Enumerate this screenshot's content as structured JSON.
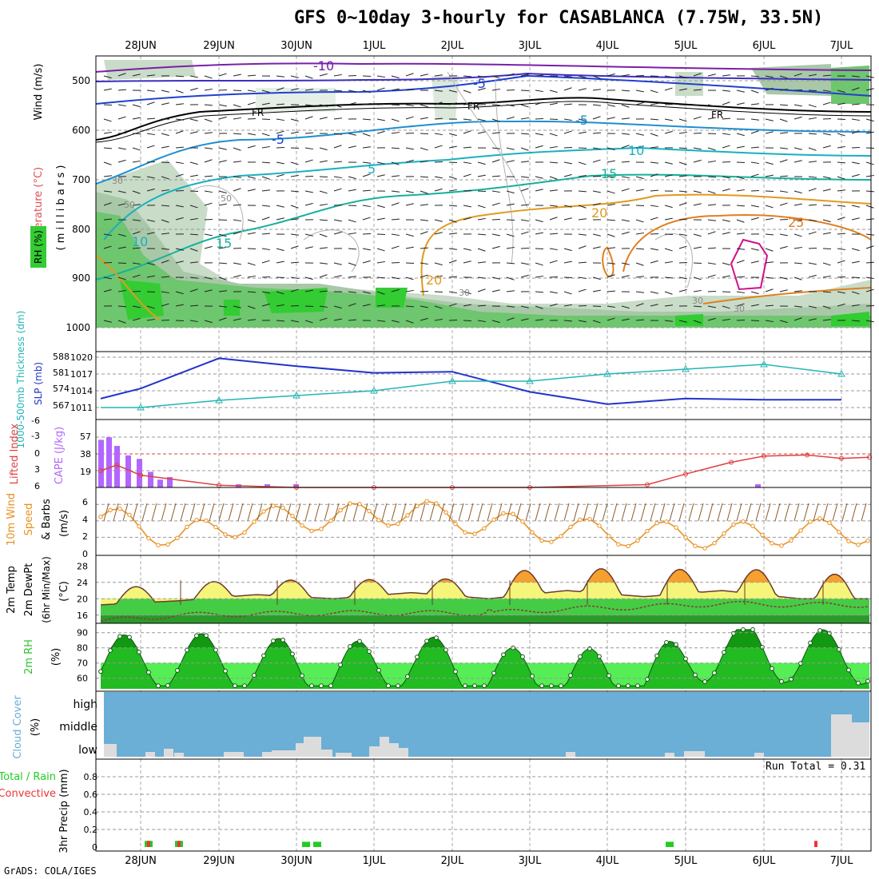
{
  "title": "GFS 0~10day 3-hourly for CASABLANCA (7.75W, 33.5N)",
  "credit": "GrADS: COLA/IGES",
  "x_axis_labels": [
    "28JUN",
    "29JUN",
    "30JUN",
    "1JUL",
    "2JUL",
    "3JUL",
    "4JUL",
    "5JUL",
    "6JUL",
    "7JUL"
  ],
  "colors": {
    "rh": "#33c233",
    "cloud": "#6baed6",
    "cape": "#b266ff",
    "lifted": "#e04040",
    "wind": "#e8901e",
    "temp_warm": "#f5f57a",
    "temp_hot": "#f5a030",
    "slp": "#2233cc",
    "thick": "#22b5b5",
    "precip_rain": "#22cc22",
    "precip_conv": "#ee3333"
  },
  "panels": {
    "upper_air": {
      "ylabels": [
        "Temperature (°C)",
        "Wind (m/s)",
        "( m i l l i b a r s )",
        "RH (%)"
      ],
      "yticks": [
        "500",
        "600",
        "700",
        "800",
        "900",
        "1000"
      ],
      "contour_labels": [
        "-10",
        "-5",
        "FR",
        "-5",
        "-5",
        "5",
        "10",
        "15",
        "10",
        "15",
        "20",
        "25",
        "20",
        "30",
        "30",
        "50",
        "50",
        "30",
        "30",
        "FR",
        "FR"
      ]
    },
    "slp": {
      "ylabel_left": "1000-500mb Thickness (dm)",
      "ylabel_right": "SLP (mb)",
      "yticks_left": [
        "588",
        "581",
        "574",
        "567"
      ],
      "yticks_right": [
        "1020",
        "1017",
        "1014",
        "1011"
      ]
    },
    "cape": {
      "ylabel_left": "Lifted Index",
      "ylabel_right": "CAPE (J/kg)",
      "yticks_left": [
        "-6",
        "-3",
        "0",
        "3",
        "6"
      ],
      "yticks_right": [
        "57",
        "38",
        "19"
      ]
    },
    "wind10m": {
      "ylabel_left": "10m Wind",
      "ylabel_mid": "Speed",
      "ylabel_right": "& Barbs",
      "ylabel_units": "(m/s)",
      "yticks": [
        "6",
        "4",
        "2",
        "0"
      ]
    },
    "temp2m": {
      "ylabel_1": "2m Temp",
      "ylabel_2": "2m DewPt",
      "ylabel_3": "(6hr Min/Max)",
      "ylabel_units": "(°C)",
      "yticks": [
        "28",
        "24",
        "20",
        "16"
      ]
    },
    "rh2m": {
      "ylabel": "2m RH",
      "ylabel_units": "(%)",
      "yticks": [
        "90",
        "80",
        "70",
        "60"
      ]
    },
    "cloud": {
      "ylabel": "Cloud Cover",
      "ylabel_units": "(%)",
      "levels": [
        "high",
        "middle",
        "low"
      ]
    },
    "precip": {
      "ylabel_left": "Total / Rain",
      "ylabel_conv": "Convective",
      "ylabel_right": "3hr Precip (mm)",
      "yticks": [
        "0.8",
        "0.6",
        "0.4",
        "0.2",
        "0"
      ],
      "run_total": "Run Total = 0.31"
    }
  },
  "chart_data": [
    {
      "type": "line",
      "title": "SLP (mb)",
      "x": [
        "28JUN",
        "29JUN",
        "30JUN",
        "1JUL",
        "2JUL",
        "3JUL",
        "4JUL",
        "5JUL",
        "6JUL",
        "7JUL"
      ],
      "series": [
        {
          "name": "SLP (mb)",
          "values": [
            1014.4,
            1019.8,
            1018.4,
            1017.2,
            1017.4,
            1013.8,
            1011.6,
            1012.6,
            1012.4,
            1012.4
          ]
        },
        {
          "name": "1000-500mb Thickness (dm)",
          "values": [
            567,
            570,
            572,
            574,
            578,
            578,
            581,
            583,
            585,
            581
          ]
        }
      ],
      "ylim": [
        1011,
        1020
      ]
    },
    {
      "type": "bar",
      "title": "CAPE (J/kg)",
      "x": [
        "27JUN12",
        "27JUN15",
        "27JUN18",
        "28JUN",
        "28JUN03",
        "28JUN06",
        "28JUN12",
        "28JUN15"
      ],
      "values": [
        55,
        58,
        48,
        37,
        33,
        18,
        9,
        12
      ]
    },
    {
      "type": "line",
      "title": "Lifted Index",
      "x": [
        "28JUN",
        "29JUN",
        "30JUN",
        "1JUL",
        "2JUL",
        "3JUL",
        "4JUL",
        "5JUL",
        "6JUL",
        "7JUL"
      ],
      "values": [
        3.8,
        5.6,
        6,
        6,
        6,
        6,
        6,
        3.6,
        0.4,
        0.8
      ],
      "ylim": [
        -6,
        6
      ]
    },
    {
      "type": "line",
      "title": "10m Wind Speed (m/s)",
      "x": [
        "28JUN",
        "29JUN",
        "30JUN",
        "1JUL",
        "2JUL",
        "3JUL",
        "4JUL",
        "5JUL",
        "6JUL",
        "7JUL"
      ],
      "values": [
        4.5,
        2.0,
        4.2,
        4.4,
        5.2,
        3.6,
        2.8,
        2.4,
        2.2,
        2.7
      ],
      "ylim": [
        0,
        7
      ]
    },
    {
      "type": "line",
      "title": "2m Temp (°C)",
      "x": [
        "28JUN",
        "29JUN",
        "30JUN",
        "1JUL",
        "2JUL",
        "3JUL",
        "4JUL",
        "5JUL",
        "6JUL",
        "7JUL"
      ],
      "series": [
        {
          "name": "2m Temp",
          "values": [
            18.5,
            19.5,
            21,
            20,
            21.5,
            20,
            22,
            20.5,
            22,
            20
          ]
        },
        {
          "name": "2m DewPt",
          "values": [
            14.5,
            16,
            16.3,
            16.5,
            16.5,
            16.5,
            17.5,
            18,
            18.8,
            18.5
          ]
        }
      ],
      "ylim": [
        14,
        30
      ]
    },
    {
      "type": "area",
      "title": "2m RH (%)",
      "x": [
        "28JUN",
        "29JUN",
        "30JUN",
        "1JUL",
        "2JUL",
        "3JUL",
        "4JUL",
        "5JUL",
        "6JUL",
        "7JUL"
      ],
      "values": [
        70,
        72,
        70,
        64,
        72,
        62,
        62,
        60,
        80,
        74
      ],
      "ylim": [
        55,
        95
      ]
    },
    {
      "type": "bar",
      "title": "3hr Precip (mm)",
      "x": [
        "28JUN",
        "28JUN12",
        "30JUN",
        "30JUN03",
        "4JUL18",
        "6JUL15"
      ],
      "series": [
        {
          "name": "Total / Rain",
          "values": [
            0.07,
            0.07,
            0.06,
            0.06,
            0.06,
            0
          ]
        },
        {
          "name": "Convective",
          "values": [
            0.07,
            0.07,
            0,
            0,
            0,
            0.07
          ]
        }
      ],
      "ylim": [
        0,
        1.0
      ]
    }
  ]
}
